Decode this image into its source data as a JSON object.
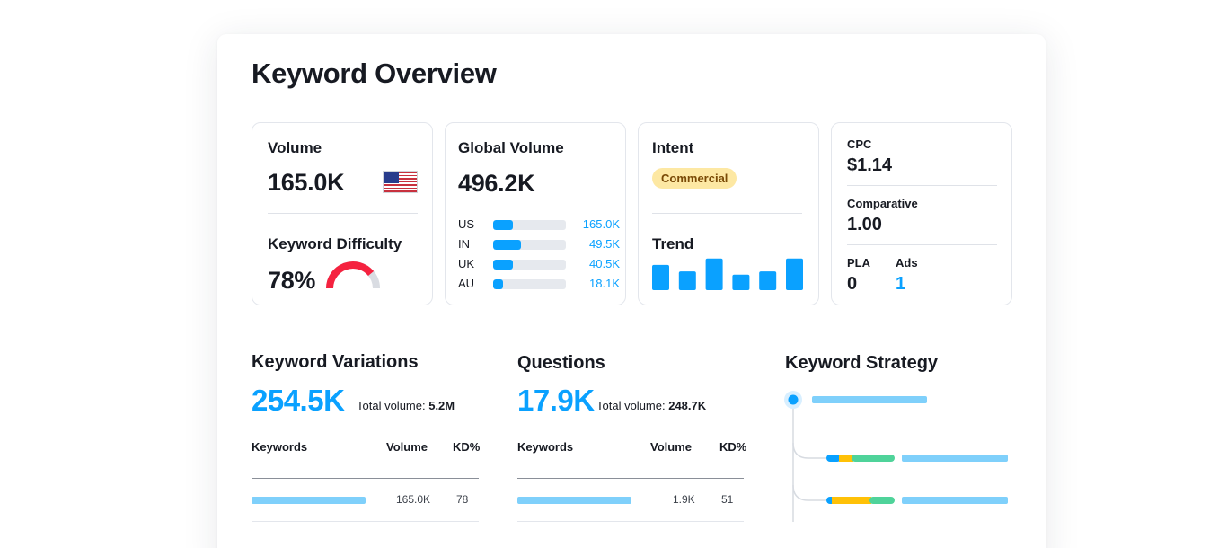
{
  "page": {
    "title": "Keyword Overview"
  },
  "volume": {
    "label": "Volume",
    "value": "165.0K",
    "flag_icon": "us-flag-icon"
  },
  "difficulty": {
    "label": "Keyword Difficulty",
    "value": "78%",
    "level": 0.78,
    "color": "#f5223f"
  },
  "global_volume": {
    "label": "Global Volume",
    "value": "496.2K",
    "countries": [
      {
        "code": "US",
        "value": "165.0K",
        "share": 0.27
      },
      {
        "code": "IN",
        "value": "49.5K",
        "share": 0.38
      },
      {
        "code": "UK",
        "value": "40.5K",
        "share": 0.27
      },
      {
        "code": "AU",
        "value": "18.1K",
        "share": 0.13
      }
    ]
  },
  "intent": {
    "label": "Intent",
    "badge": "Commercial"
  },
  "trend": {
    "label": "Trend",
    "values": [
      0.78,
      0.58,
      0.98,
      0.48,
      0.58,
      0.98
    ]
  },
  "cpc": {
    "cpc_label": "CPC",
    "cpc_value": "$1.14",
    "comparative_label": "Comparative",
    "comparative_value": "1.00",
    "pla_label": "PLA",
    "pla_value": "0",
    "ads_label": "Ads",
    "ads_value": "1"
  },
  "variations": {
    "title": "Keyword Variations",
    "count": "254.5K",
    "total_label": "Total volume:",
    "total_value": "5.2M",
    "columns": [
      "Keywords",
      "Volume",
      "KD%"
    ],
    "row": {
      "volume": "165.0K",
      "kd": "78"
    }
  },
  "questions": {
    "title": "Questions",
    "count": "17.9K",
    "total_label": "Total volume:",
    "total_value": "248.7K",
    "columns": [
      "Keywords",
      "Volume",
      "KD%"
    ],
    "row": {
      "volume": "1.9K",
      "kd": "51"
    }
  },
  "strategy": {
    "title": "Keyword Strategy"
  },
  "colors": {
    "accent": "#0aa1ff",
    "light_bar": "#7fd0fb",
    "green": "#4fd39a",
    "yellow": "#ffc107"
  }
}
